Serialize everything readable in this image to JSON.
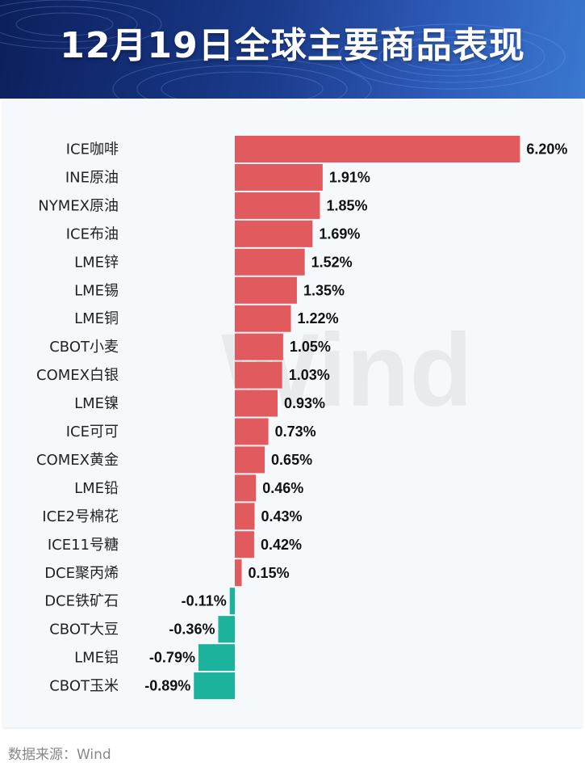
{
  "title": "12月19日全球主要商品表现",
  "source": "数据来源：Wind",
  "watermark": "Wind",
  "colors": {
    "positive": "#e15b5e",
    "negative": "#1cb29b",
    "header_bg": "#163888",
    "panel_bg": "#f6f9fc"
  },
  "chart_data": {
    "type": "bar",
    "orientation": "horizontal",
    "title": "12月19日全球主要商品表现",
    "xlabel": "",
    "ylabel": "",
    "unit": "%",
    "grid": false,
    "legend": "none",
    "categories": [
      "ICE咖啡",
      "INE原油",
      "NYMEX原油",
      "ICE布油",
      "LME锌",
      "LME锡",
      "LME铜",
      "CBOT小麦",
      "COMEX白银",
      "LME镍",
      "ICE可可",
      "COMEX黄金",
      "LME铅",
      "ICE2号棉花",
      "ICE11号糖",
      "DCE聚丙烯",
      "DCE铁矿石",
      "CBOT大豆",
      "LME铝",
      "CBOT玉米"
    ],
    "values": [
      6.2,
      1.91,
      1.85,
      1.69,
      1.52,
      1.35,
      1.22,
      1.05,
      1.03,
      0.93,
      0.73,
      0.65,
      0.46,
      0.43,
      0.42,
      0.15,
      -0.11,
      -0.36,
      -0.79,
      -0.89
    ],
    "value_labels": [
      "6.20%",
      "1.91%",
      "1.85%",
      "1.69%",
      "1.52%",
      "1.35%",
      "1.22%",
      "1.05%",
      "1.03%",
      "0.93%",
      "0.73%",
      "0.65%",
      "0.46%",
      "0.43%",
      "0.42%",
      "0.15%",
      "-0.11%",
      "-0.36%",
      "-0.79%",
      "-0.89%"
    ]
  }
}
